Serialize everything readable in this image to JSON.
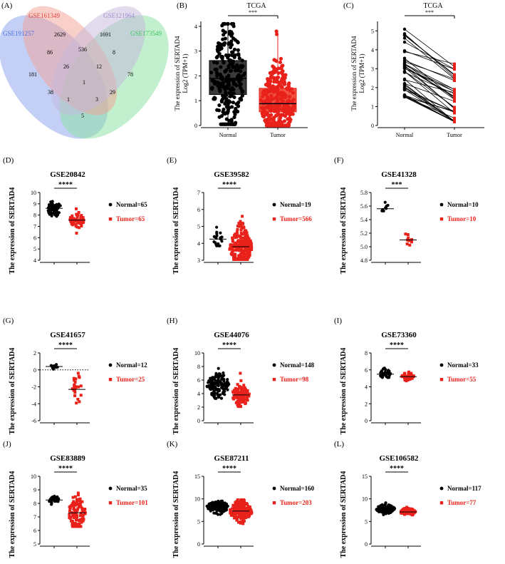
{
  "colors": {
    "normal": "#000000",
    "tumor": "#e8221a",
    "venn_blue": "#93a7ee",
    "venn_red": "#f2a294",
    "venn_purple": "#c4b8dc",
    "venn_green": "#8fe2a6",
    "label_blue": "#4a6fe0",
    "label_red": "#e0463a",
    "label_purple": "#a38ed0",
    "label_green": "#3cc860"
  },
  "chart_data": [
    {
      "panel": "(A)",
      "type": "venn",
      "sets": [
        "GSE191257",
        "GSE161349",
        "GSE121964",
        "GSE173549"
      ],
      "regions": {
        "only_GSE191257": 181,
        "only_GSE161349": 2629,
        "only_GSE121964": 1691,
        "only_GSE173549": 78,
        "GSE191257_GSE161349": 86,
        "GSE161349_GSE121964": 536,
        "GSE121964_GSE173549": 8,
        "GSE191257_GSE173549": 5,
        "GSE191257_GSE161349_GSE121964": 26,
        "GSE161349_GSE121964_GSE173549": 12,
        "GSE191257_GSE161349_GSE173549": 38,
        "GSE191257_GSE121964_GSE173549": 3,
        "GSE191257_GSE121964": 1,
        "GSE161349_GSE173549": 29,
        "all_four": 1
      }
    },
    {
      "panel": "(B)",
      "type": "box",
      "title": "TCGA",
      "ylabel": "The expression  of SERTAD4",
      "ylabel2": "Log2 (TPM+1)",
      "categories": [
        "Normal",
        "Tumor"
      ],
      "ylim": [
        0,
        4.2
      ],
      "yticks": [
        0,
        1,
        2,
        3,
        4
      ],
      "significance": "***",
      "boxes": [
        {
          "name": "Normal",
          "q1": 1.25,
          "median": 1.9,
          "q3": 2.62,
          "min": 0.05,
          "max": 4.1
        },
        {
          "name": "Tumor",
          "q1": 0.55,
          "median": 0.88,
          "q3": 1.5,
          "min": 0.0,
          "max": 3.8
        }
      ]
    },
    {
      "panel": "(C)",
      "type": "paired",
      "title": "TCGA",
      "ylabel": "The expression  of SERTAD4",
      "ylabel2": "Log2 (TPM+1)",
      "categories": [
        "Normal",
        "Tumor"
      ],
      "ylim": [
        0,
        5.5
      ],
      "yticks": [
        0,
        1,
        2,
        3,
        4,
        5
      ],
      "significance": "***",
      "normal_range": [
        1.5,
        5.2
      ],
      "tumor_range": [
        0.2,
        3.3
      ],
      "n_pairs": 40
    },
    {
      "panel": "(D)",
      "type": "scatter",
      "title": "GSE20842",
      "ylabel": "The expression of SERTAD4",
      "ylim": [
        4,
        10
      ],
      "yticks": [
        4,
        5,
        6,
        7,
        8,
        9,
        10
      ],
      "significance": "****",
      "legend": [
        "Normal=65",
        "Tumor=65"
      ],
      "normal": {
        "median": 8.6,
        "min": 7.5,
        "max": 9.7
      },
      "tumor": {
        "median": 7.55,
        "min": 6.4,
        "max": 8.8
      },
      "dotted_zero": false
    },
    {
      "panel": "(E)",
      "type": "scatter",
      "title": "GSE39582",
      "ylabel": "The expression of SERTAD4",
      "ylim": [
        3,
        7
      ],
      "yticks": [
        3,
        4,
        5,
        6,
        7
      ],
      "significance": "****",
      "legend": [
        "Normal=19",
        "Tumor=566"
      ],
      "normal": {
        "median": 4.25,
        "min": 3.85,
        "max": 5.2
      },
      "tumor": {
        "median": 3.8,
        "min": 3.05,
        "max": 6.05
      },
      "dotted_zero": false
    },
    {
      "panel": "(F)",
      "type": "scatter",
      "title": "GSE41328",
      "ylabel": "The expression of SERTAD4",
      "ylim": [
        4.8,
        5.8
      ],
      "yticks": [
        4.8,
        5.0,
        5.2,
        5.4,
        5.6,
        5.8
      ],
      "significance": "***",
      "legend": [
        "Normal=10",
        "Tumor=10"
      ],
      "normal": {
        "median": 5.56,
        "min": 5.45,
        "max": 5.7
      },
      "tumor": {
        "median": 5.1,
        "min": 4.95,
        "max": 5.35
      },
      "dotted_zero": false
    },
    {
      "panel": "(G)",
      "type": "scatter",
      "title": "GSE41657",
      "ylabel": "The expression of SERTAD4",
      "ylim": [
        -6,
        2
      ],
      "yticks": [
        -6,
        -4,
        -2,
        0,
        2
      ],
      "significance": "****",
      "legend": [
        "Normal=12",
        "Tumor=25"
      ],
      "normal": {
        "median": 0.4,
        "min": 0.0,
        "max": 0.8
      },
      "tumor": {
        "median": -2.3,
        "min": -4.5,
        "max": 0.5
      },
      "dotted_zero": true
    },
    {
      "panel": "(H)",
      "type": "scatter",
      "title": "GSE44076",
      "ylabel": "The expression of SERTAD4",
      "ylim": [
        0,
        10
      ],
      "yticks": [
        0,
        2,
        4,
        6,
        8,
        10
      ],
      "significance": "****",
      "legend": [
        "Normal=148",
        "Tumor=98"
      ],
      "normal": {
        "median": 5.3,
        "min": 3.3,
        "max": 8.8
      },
      "tumor": {
        "median": 3.8,
        "min": 2.1,
        "max": 7.0
      },
      "dotted_zero": false
    },
    {
      "panel": "(I)",
      "type": "scatter",
      "title": "GSE73360",
      "ylabel": "The expression of SERTAD4",
      "ylim": [
        0,
        8
      ],
      "yticks": [
        0,
        2,
        4,
        6,
        8
      ],
      "significance": "****",
      "legend": [
        "Normal=33",
        "Tumor=55"
      ],
      "normal": {
        "median": 5.5,
        "min": 5.1,
        "max": 6.8
      },
      "tumor": {
        "median": 5.2,
        "min": 4.7,
        "max": 6.0
      },
      "dotted_zero": false
    },
    {
      "panel": "(J)",
      "type": "scatter",
      "title": "GSE83889",
      "ylabel": "The expression of SERTAD4",
      "ylim": [
        5,
        10
      ],
      "yticks": [
        5,
        6,
        7,
        8,
        9,
        10
      ],
      "significance": "****",
      "legend": [
        "Normal=35",
        "Tumor=101"
      ],
      "normal": {
        "median": 8.25,
        "min": 7.6,
        "max": 8.7
      },
      "tumor": {
        "median": 7.3,
        "min": 6.3,
        "max": 9.6
      },
      "dotted_zero": false
    },
    {
      "panel": "(K)",
      "type": "scatter",
      "title": "GSE87211",
      "ylabel": "The expression of SERTAD4",
      "ylim": [
        0,
        15
      ],
      "yticks": [
        0,
        5,
        10,
        15
      ],
      "significance": "****",
      "legend": [
        "Normal=160",
        "Tumor=203"
      ],
      "normal": {
        "median": 8.2,
        "min": 5.8,
        "max": 9.5
      },
      "tumor": {
        "median": 7.3,
        "min": 3.7,
        "max": 9.8
      },
      "dotted_zero": false
    },
    {
      "panel": "(L)",
      "type": "scatter",
      "title": "GSE106582",
      "ylabel": "The expression of SERTAD4",
      "ylim": [
        0,
        15
      ],
      "yticks": [
        0,
        5,
        10,
        15
      ],
      "significance": "****",
      "legend": [
        "Normal=117",
        "Tumor=77"
      ],
      "normal": {
        "median": 7.8,
        "min": 6.5,
        "max": 9.5
      },
      "tumor": {
        "median": 7.1,
        "min": 5.8,
        "max": 8.3
      },
      "dotted_zero": false
    }
  ],
  "axis_labels": {
    "normal": "Normal",
    "tumor": "Tumor"
  }
}
